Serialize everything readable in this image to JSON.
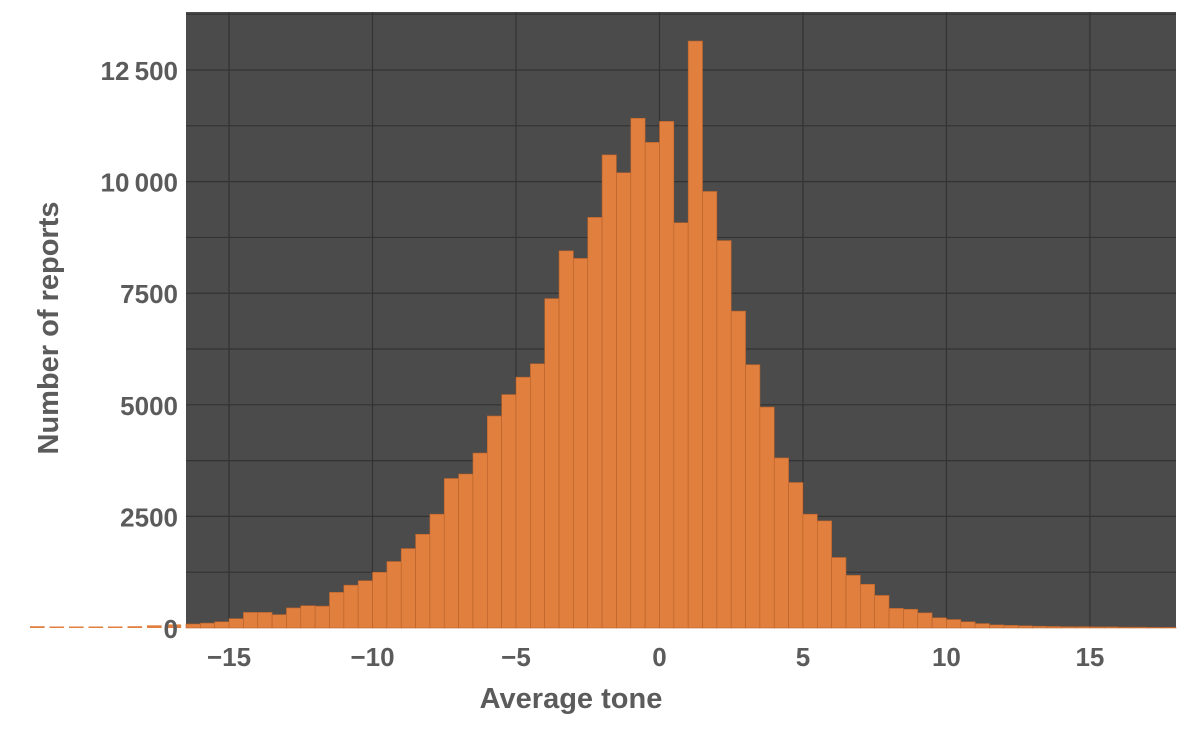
{
  "chart_data": {
    "type": "bar",
    "title": "",
    "xlabel": "Average tone",
    "ylabel": "Number of reports",
    "xlim": [
      -16.5,
      18
    ],
    "ylim": [
      0,
      13800
    ],
    "x_ticks": [
      -15,
      -10,
      -5,
      0,
      5,
      10,
      15
    ],
    "x_tick_labels": [
      "−15",
      "−10",
      "−5",
      "0",
      "5",
      "10",
      "15"
    ],
    "y_ticks": [
      0,
      2500,
      5000,
      7500,
      10000,
      12500
    ],
    "y_tick_labels": [
      "0",
      "2500",
      "5000",
      "7500",
      "10 000",
      "12 500"
    ],
    "grid": true,
    "legend": "none",
    "colors": {
      "bar": "#e07f3e",
      "plot_background": "#4b4b4b",
      "grid": "#333333"
    },
    "bin_width": 0.5,
    "bin_start": -16.5,
    "values": [
      90,
      110,
      140,
      210,
      350,
      350,
      300,
      450,
      500,
      490,
      800,
      960,
      1060,
      1250,
      1490,
      1780,
      2100,
      2550,
      3350,
      3450,
      3920,
      4750,
      5230,
      5620,
      5920,
      7380,
      8450,
      8280,
      9200,
      10600,
      10200,
      11420,
      10880,
      11350,
      9080,
      13150,
      9780,
      8680,
      7100,
      5900,
      4950,
      3810,
      3260,
      2550,
      2400,
      1580,
      1180,
      980,
      730,
      440,
      420,
      340,
      230,
      190,
      140,
      100,
      70,
      60,
      50,
      40,
      35,
      30,
      30,
      25,
      25,
      20,
      20,
      15,
      15
    ],
    "overflow_left_values": [
      40,
      15,
      30,
      20,
      30,
      40,
      60,
      80
    ]
  }
}
